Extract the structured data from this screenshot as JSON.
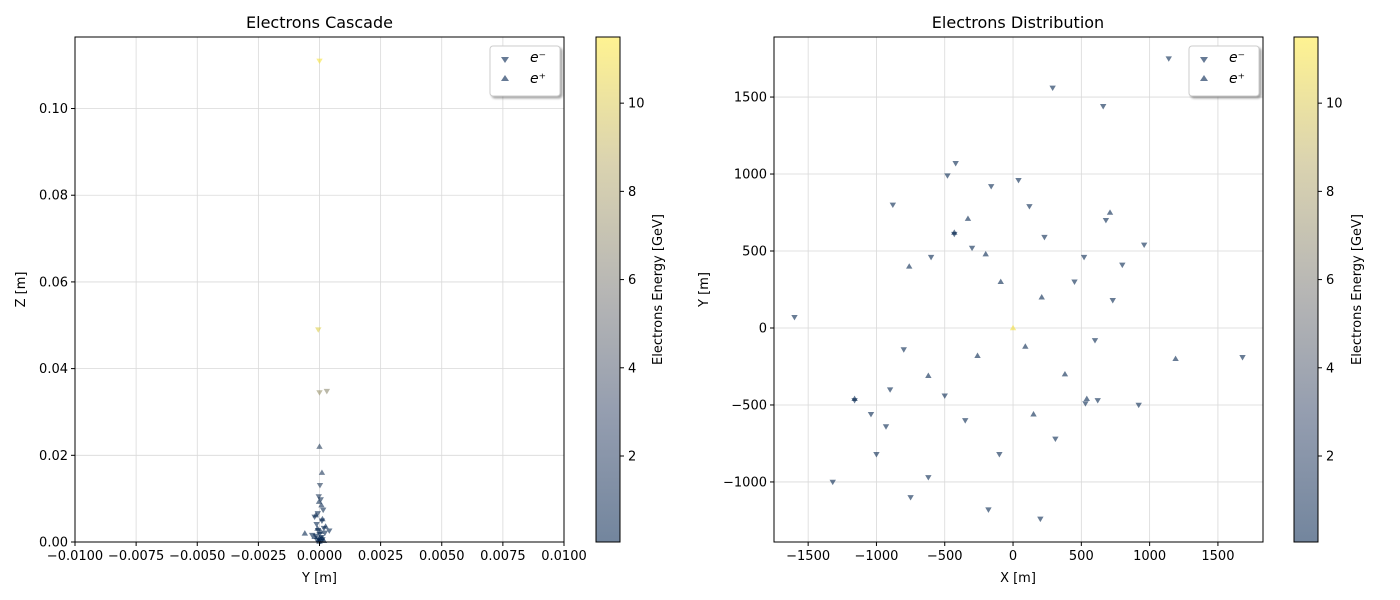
{
  "colors": {
    "low": "#00224e",
    "high": "#fee838",
    "marker_alpha": 0.6
  },
  "chart_data": [
    {
      "type": "scatter",
      "title": "Electrons Cascade",
      "xlabel": "Y [m]",
      "ylabel": "Z [m]",
      "xlim": [
        -0.01,
        0.01
      ],
      "ylim": [
        0,
        0.1165
      ],
      "xticks": [
        -0.01,
        -0.0075,
        -0.005,
        -0.0025,
        0.0,
        0.0025,
        0.005,
        0.0075,
        0.01
      ],
      "xtick_labels": [
        "−0.0100",
        "−0.0075",
        "−0.0050",
        "−0.0025",
        "0.0000",
        "0.0025",
        "0.0050",
        "0.0075",
        "0.0100"
      ],
      "yticks": [
        0.0,
        0.02,
        0.04,
        0.06,
        0.08,
        0.1
      ],
      "ytick_labels": [
        "0.00",
        "0.02",
        "0.04",
        "0.06",
        "0.08",
        "0.10"
      ],
      "grid": true,
      "legend": {
        "position": "top-right",
        "entries": [
          "e⁻",
          "e⁺"
        ]
      },
      "series": [
        {
          "name": "e⁻",
          "marker": "triangle-down",
          "points": [
            [
              0.0,
              0.111,
              11.2
            ],
            [
              -5e-05,
              0.049,
              10.1
            ],
            [
              0.0,
              0.0345,
              7.0
            ],
            [
              0.0003,
              0.0348,
              6.5
            ],
            [
              2e-05,
              0.0131,
              1.5
            ],
            [
              -3e-05,
              0.0105,
              1.0
            ],
            [
              5e-05,
              0.0098,
              0.9
            ],
            [
              -0.0002,
              0.0058,
              0.5
            ],
            [
              0.0001,
              0.0049,
              0.4
            ],
            [
              -0.00012,
              0.0041,
              0.3
            ],
            [
              0.00018,
              0.0032,
              0.3
            ],
            [
              -6e-05,
              0.0027,
              0.2
            ],
            [
              0.00022,
              0.0021,
              0.2
            ],
            [
              0.0,
              0.0018,
              0.2
            ],
            [
              -0.00015,
              0.0014,
              0.15
            ],
            [
              8e-05,
              0.0011,
              0.15
            ],
            [
              -4e-05,
              0.0008,
              0.1
            ],
            [
              0.00012,
              0.0006,
              0.1
            ],
            [
              -0.0001,
              0.0004,
              0.1
            ],
            [
              3e-05,
              0.0002,
              0.1
            ],
            [
              0.0004,
              0.0026,
              0.2
            ],
            [
              -0.0003,
              0.0016,
              0.15
            ],
            [
              0.00015,
              0.0074,
              0.6
            ],
            [
              -7e-05,
              0.0066,
              0.5
            ]
          ]
        },
        {
          "name": "e⁺",
          "marker": "triangle-up",
          "points": [
            [
              0.0,
              0.022,
              1.6
            ],
            [
              0.0001,
              0.016,
              1.2
            ],
            [
              -2e-05,
              0.0093,
              0.8
            ],
            [
              8e-05,
              0.0085,
              0.7
            ],
            [
              -0.00015,
              0.0062,
              0.5
            ],
            [
              0.00012,
              0.0053,
              0.4
            ],
            [
              -0.0006,
              0.002,
              0.2
            ],
            [
              0.00025,
              0.0036,
              0.3
            ],
            [
              -8e-05,
              0.0031,
              0.25
            ],
            [
              5e-05,
              0.0024,
              0.2
            ],
            [
              -0.0002,
              0.0012,
              0.1
            ],
            [
              0.0001,
              0.0009,
              0.1
            ],
            [
              -3e-05,
              0.0005,
              0.1
            ],
            [
              0.00018,
              0.0003,
              0.1
            ],
            [
              0.0,
              0.0001,
              0.1
            ]
          ]
        }
      ]
    },
    {
      "type": "scatter",
      "title": "Electrons Distribution",
      "xlabel": "X [m]",
      "ylabel": "Y [m]",
      "xlim": [
        -1750,
        1830
      ],
      "ylim": [
        -1390,
        1890
      ],
      "xticks": [
        -1500,
        -1000,
        -500,
        0,
        500,
        1000,
        1500
      ],
      "xtick_labels": [
        "−1500",
        "−1000",
        "−500",
        "0",
        "500",
        "1000",
        "1500"
      ],
      "yticks": [
        -1000,
        -500,
        0,
        500,
        1000,
        1500
      ],
      "ytick_labels": [
        "−1000",
        "−500",
        "0",
        "500",
        "1000",
        "1500"
      ],
      "grid": true,
      "legend": {
        "position": "top-right",
        "entries": [
          "e⁻",
          "e⁺"
        ]
      },
      "series": [
        {
          "name": "e⁻",
          "marker": "triangle-down",
          "points": [
            [
              1140,
              1750,
              0.2
            ],
            [
              290,
              1560,
              0.2
            ],
            [
              660,
              1440,
              0.2
            ],
            [
              -420,
              1070,
              0.2
            ],
            [
              -480,
              990,
              0.2
            ],
            [
              -160,
              920,
              0.2
            ],
            [
              40,
              960,
              0.2
            ],
            [
              -880,
              800,
              0.2
            ],
            [
              120,
              790,
              0.2
            ],
            [
              680,
              700,
              0.2
            ],
            [
              960,
              540,
              0.2
            ],
            [
              800,
              410,
              0.2
            ],
            [
              -1600,
              70,
              0.2
            ],
            [
              1680,
              -190,
              0.2
            ],
            [
              920,
              -500,
              0.2
            ],
            [
              -1000,
              -820,
              0.2
            ],
            [
              -1320,
              -1000,
              0.2
            ],
            [
              -750,
              -1100,
              0.2
            ],
            [
              -180,
              -1180,
              0.2
            ],
            [
              200,
              -1240,
              0.2
            ],
            [
              -1160,
              -470,
              0.2
            ],
            [
              -1040,
              -560,
              0.2
            ],
            [
              -930,
              -640,
              0.2
            ],
            [
              -620,
              -970,
              0.2
            ],
            [
              620,
              -470,
              0.2
            ],
            [
              530,
              -490,
              0.2
            ],
            [
              310,
              -720,
              0.2
            ],
            [
              -100,
              -820,
              0.2
            ],
            [
              -430,
              610,
              0.2
            ],
            [
              230,
              590,
              0.2
            ],
            [
              -300,
              520,
              0.2
            ],
            [
              520,
              460,
              0.2
            ],
            [
              -600,
              460,
              0.2
            ],
            [
              730,
              180,
              0.2
            ],
            [
              -800,
              -140,
              0.2
            ],
            [
              -900,
              -400,
              0.2
            ],
            [
              600,
              -80,
              0.2
            ],
            [
              -500,
              -440,
              0.2
            ],
            [
              450,
              300,
              0.2
            ],
            [
              -350,
              -600,
              0.2
            ]
          ]
        },
        {
          "name": "e⁺",
          "marker": "triangle-up",
          "points": [
            [
              0,
              0,
              11.0
            ],
            [
              -330,
              710,
              0.2
            ],
            [
              710,
              750,
              0.2
            ],
            [
              -760,
              400,
              0.2
            ],
            [
              1190,
              -200,
              0.2
            ],
            [
              -1160,
              -460,
              0.2
            ],
            [
              -430,
              620,
              0.2
            ],
            [
              540,
              -460,
              0.2
            ],
            [
              -620,
              -310,
              0.2
            ],
            [
              380,
              -300,
              0.2
            ],
            [
              -200,
              480,
              0.2
            ],
            [
              150,
              -560,
              0.2
            ],
            [
              -90,
              300,
              0.2
            ],
            [
              210,
              200,
              0.2
            ],
            [
              -260,
              -180,
              0.2
            ],
            [
              90,
              -120,
              0.2
            ]
          ]
        }
      ]
    }
  ],
  "colorbars": [
    {
      "label": "Electrons Energy [GeV]",
      "vmin": 0.05,
      "vmax": 11.5,
      "ticks": [
        2,
        4,
        6,
        8,
        10
      ],
      "tick_labels": [
        "2",
        "4",
        "6",
        "8",
        "10"
      ]
    },
    {
      "label": "Electrons Energy [GeV]",
      "vmin": 0.05,
      "vmax": 11.5,
      "ticks": [
        2,
        4,
        6,
        8,
        10
      ],
      "tick_labels": [
        "2",
        "4",
        "6",
        "8",
        "10"
      ]
    }
  ]
}
